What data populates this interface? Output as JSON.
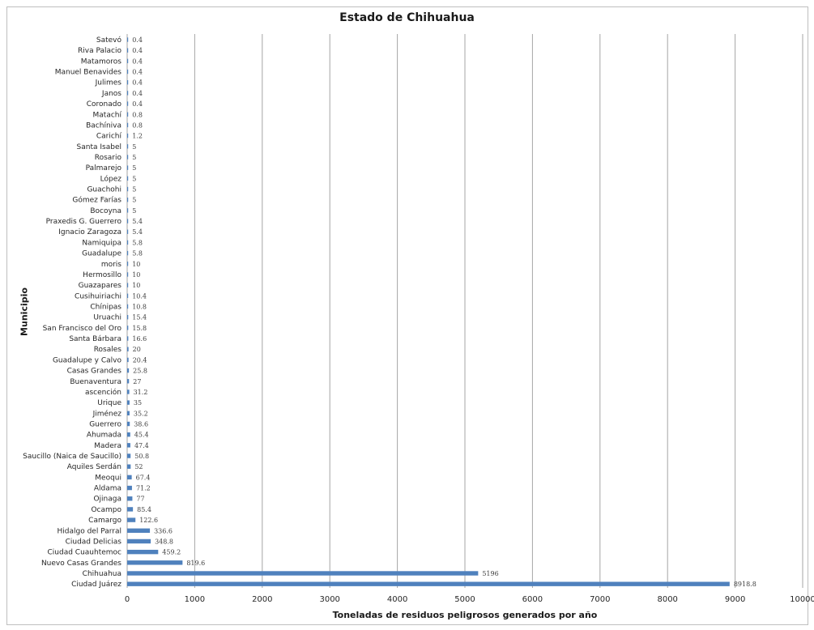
{
  "chart_data": {
    "type": "bar",
    "orientation": "horizontal",
    "title": "Estado de Chihuahua",
    "xlabel": "Toneladas de residuos peligrosos generados por año",
    "ylabel": "Municipio",
    "xlim": [
      0,
      10000
    ],
    "xticks": [
      "0",
      "1000",
      "2000",
      "3000",
      "4000",
      "5000",
      "6000",
      "7000",
      "8000",
      "9000",
      "10000"
    ],
    "grid": "vertical",
    "bar_color": "#4f81bd",
    "categories": [
      "Satevó",
      "Riva Palacio",
      "Matamoros",
      "Manuel Benavides",
      "Julimes",
      "Janos",
      "Coronado",
      "Matachí",
      "Bachíniva",
      "Carichí",
      "Santa Isabel",
      "Rosario",
      "Palmarejo",
      "López",
      "Guachohi",
      "Gómez Farías",
      "Bocoyna",
      "Praxedis G. Guerrero",
      "Ignacio Zaragoza",
      "Namiquipa",
      "Guadalupe",
      "moris",
      "Hermosillo",
      "Guazapares",
      "Cusihuiriachi",
      "Chínipas",
      "Uruachi",
      "San Francisco del Oro",
      "Santa Bárbara",
      "Rosales",
      "Guadalupe y Calvo",
      "Casas Grandes",
      "Buenaventura",
      "ascención",
      "Urique",
      "Jiménez",
      "Guerrero",
      "Ahumada",
      "Madera",
      "Saucillo (Naica de Saucillo)",
      "Aquiles Serdán",
      "Meoqui",
      "Aldama",
      "Ojinaga",
      "Ocampo",
      "Camargo",
      "Hidalgo del Parral",
      "Ciudad Delicias",
      "Ciudad Cuauhtemoc",
      "Nuevo Casas Grandes",
      "Chihuahua",
      "Ciudad Juárez"
    ],
    "values": [
      0.4,
      0.4,
      0.4,
      0.4,
      0.4,
      0.4,
      0.4,
      0.8,
      0.8,
      1.2,
      5,
      5,
      5,
      5,
      5,
      5,
      5,
      5.4,
      5.4,
      5.8,
      5.8,
      10,
      10,
      10,
      10.4,
      10.8,
      15.4,
      15.8,
      16.6,
      20,
      20.4,
      25.8,
      27,
      31.2,
      35,
      35.2,
      38.6,
      45.4,
      47.4,
      50.8,
      52,
      67.4,
      71.2,
      77,
      85.4,
      122.6,
      336.6,
      348.8,
      459.2,
      819.6,
      5196,
      8918.8
    ]
  }
}
